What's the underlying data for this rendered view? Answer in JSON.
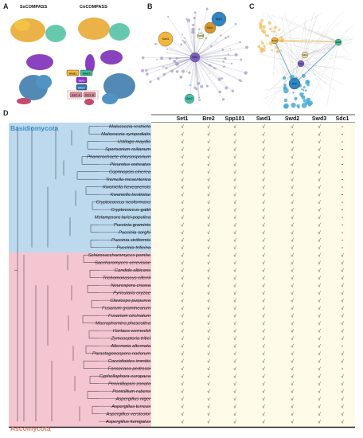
{
  "panels": {
    "a_label": "A",
    "a_title_left": "SsCOMPASS",
    "a_title_right": "CnCOMPASS",
    "a_legend": [
      "Swd1",
      "Swd3",
      "Set1",
      "Bre2",
      "Sdc1-A",
      "Sdc1-B"
    ],
    "b_label": "B",
    "b_nodes": [
      "Swd1",
      "Swd3",
      "Spp1",
      "Sdc1",
      "Set1",
      "Bre2"
    ],
    "c_label": "C",
    "c_nodes": [
      "Swd1",
      "Swd3",
      "Sdc1",
      "Set1",
      "Bre2"
    ],
    "d_label": "D"
  },
  "table": {
    "columns": [
      "Set1",
      "Bre2",
      "Spp101",
      "Swd1",
      "Swd2",
      "Swd3",
      "Sdc1"
    ],
    "clades": [
      "Basidiomycota",
      "Ascomycota"
    ],
    "check_mark": "√",
    "absent_mark": "-",
    "species": [
      "Malassezia restricta",
      "Malassezia sympodialis",
      "Ustilago maydis",
      "Sporisorium reilianum",
      "Phanerochaete chrysosporium",
      "Pleurotus ostreatus",
      "Coprinopsis cinerea",
      "Tremella mesenterica",
      "Kwoniella heveanensis",
      "Kwoniella bestiolae",
      "Cryptococcus neoformans",
      "Cryptococcus gattii",
      "Melampsora larici-populina",
      "Puccinia graminis",
      "Puccinia sorghi",
      "Puccinia striiformis",
      "Puccinia triticina",
      "Schizosaccharomyces pombe",
      "Saccharomyces cerevisiae",
      "Candida albicans",
      "Trichomonascus ciferrii",
      "Neurospora crassa",
      "Pyricularia oryzae",
      "Claviceps purpurea",
      "Fusarium graminearum",
      "Fusarium circinatum",
      "Macrophomina phaseolina",
      "Hortaea werneckii",
      "Zymoseptoria tritici",
      "Alternaria alternata",
      "Parastagonospora nodorum",
      "Coccidioides immitis",
      "Fonsecaea pedrosoi",
      "Cyphellophora europaea",
      "Penicilliopsis zonata",
      "Penicillium rubens",
      "Aspergillus niger",
      "Aspergillus terreus",
      "Aspergillus versicolor",
      "Aspergillus fumigatus"
    ],
    "sdc1": [
      "-",
      "-",
      "-",
      "-",
      "-",
      "-",
      "-",
      "-",
      "-",
      "-",
      "-",
      "-",
      "-",
      "-",
      "-",
      "-",
      "-",
      "√",
      "√",
      "√",
      "√",
      "√",
      "√",
      "√",
      "√",
      "√",
      "√",
      "√",
      "√",
      "-",
      "√",
      "√",
      "-",
      "√",
      "√",
      "√",
      "√",
      "√",
      "√",
      "√"
    ],
    "colors": {
      "basidio_bg": "#bcd9ee",
      "asco_bg": "#f4c6d2",
      "table_bg": "#fefbe9",
      "basidio_text": "#3a8fc9",
      "asco_text": "#e07b67",
      "absent_red": "#d6201f"
    }
  }
}
